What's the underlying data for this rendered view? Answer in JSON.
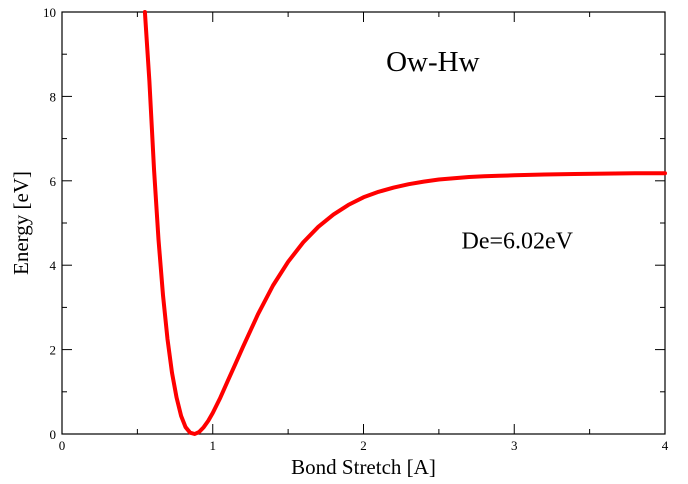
{
  "chart_data": {
    "type": "line",
    "title": "",
    "xlabel": "Bond Stretch [A]",
    "ylabel": "Energy [eV]",
    "xlim": [
      0,
      4
    ],
    "ylim": [
      0,
      10
    ],
    "x_ticks": [
      0,
      1,
      2,
      3,
      4
    ],
    "y_ticks": [
      0,
      2,
      4,
      6,
      8,
      10
    ],
    "x_tick_labels": [
      "0",
      "1",
      "2",
      "3",
      "4"
    ],
    "y_tick_labels": [
      "0",
      "2",
      "4",
      "6",
      "8",
      "10"
    ],
    "grid": false,
    "legend": "none",
    "annotations": [
      {
        "text": "Ow-Hw",
        "x": 2.15,
        "y": 8.6
      },
      {
        "text": "De=6.02eV",
        "x": 2.65,
        "y": 4.4
      }
    ],
    "series": [
      {
        "color": "#ff0000",
        "x": [
          0.55,
          0.58,
          0.61,
          0.64,
          0.67,
          0.7,
          0.73,
          0.76,
          0.79,
          0.82,
          0.85,
          0.88,
          0.91,
          0.94,
          0.97,
          1.0,
          1.05,
          1.1,
          1.15,
          1.2,
          1.3,
          1.4,
          1.5,
          1.6,
          1.7,
          1.8,
          1.9,
          2.0,
          2.1,
          2.2,
          2.3,
          2.4,
          2.5,
          2.6,
          2.7,
          2.8,
          2.9,
          3.0,
          3.2,
          3.4,
          3.6,
          3.8,
          4.0
        ],
        "y": [
          10.0,
          8.36,
          6.28,
          4.61,
          3.29,
          2.25,
          1.45,
          0.86,
          0.43,
          0.16,
          0.03,
          0.0,
          0.05,
          0.16,
          0.31,
          0.5,
          0.86,
          1.26,
          1.66,
          2.06,
          2.84,
          3.52,
          4.08,
          4.54,
          4.91,
          5.2,
          5.43,
          5.61,
          5.74,
          5.84,
          5.92,
          5.98,
          6.03,
          6.06,
          6.09,
          6.11,
          6.12,
          6.13,
          6.15,
          6.16,
          6.17,
          6.18,
          6.18
        ]
      }
    ]
  }
}
